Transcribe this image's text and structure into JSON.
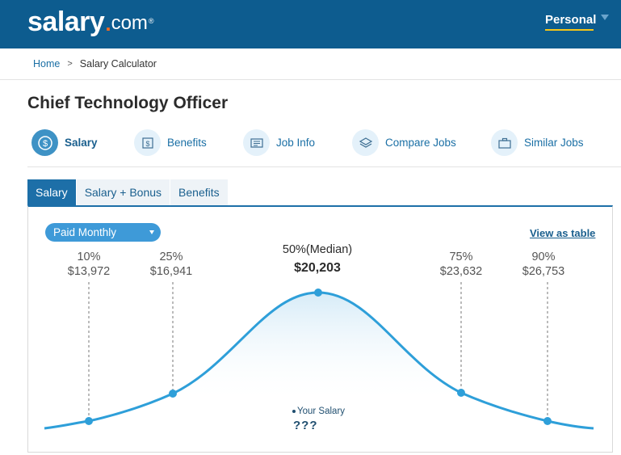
{
  "brand": {
    "logo_main": "salary",
    "logo_dot": ".",
    "logo_com": "com",
    "logo_reg": "®"
  },
  "header": {
    "account_menu": "Personal"
  },
  "breadcrumb": {
    "home": "Home",
    "separator": ">",
    "current": "Salary Calculator"
  },
  "page": {
    "title": "Chief Technology Officer"
  },
  "icon_nav": [
    {
      "label": "Salary",
      "icon": "dollar-coin-icon",
      "active": true
    },
    {
      "label": "Benefits",
      "icon": "dollar-document-icon",
      "active": false
    },
    {
      "label": "Job Info",
      "icon": "document-lines-icon",
      "active": false
    },
    {
      "label": "Compare Jobs",
      "icon": "layers-icon",
      "active": false
    },
    {
      "label": "Similar Jobs",
      "icon": "briefcase-icon",
      "active": false
    }
  ],
  "tabs": [
    {
      "label": "Salary",
      "active": true
    },
    {
      "label": "Salary + Bonus",
      "active": false
    },
    {
      "label": "Benefits",
      "active": false
    }
  ],
  "controls": {
    "pay_period": "Paid Monthly",
    "view_as_table": "View as table"
  },
  "distribution": {
    "p10": {
      "pct": "10%",
      "value": "$13,972"
    },
    "p25": {
      "pct": "25%",
      "value": "$16,941"
    },
    "p50": {
      "pct": "50%(Median)",
      "value": "$20,203"
    },
    "p75": {
      "pct": "75%",
      "value": "$23,632"
    },
    "p90": {
      "pct": "90%",
      "value": "$26,753"
    }
  },
  "your_salary": {
    "label": "Your Salary",
    "value": "???"
  },
  "colors": {
    "header": "#0d5c8f",
    "curve": "#2e9fd9",
    "accent": "#f26a21",
    "tab_active": "#1d6fa8",
    "dropdown": "#3e9ad8"
  }
}
